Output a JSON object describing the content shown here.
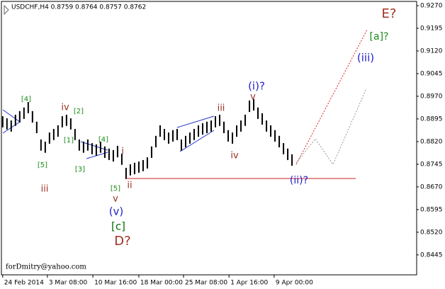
{
  "chart_data": {
    "type": "range_bar",
    "title": "USDCHF,H4 0.8759 0.8764 0.8757 0.8762",
    "color": "#000000",
    "high": [
      0.8904,
      0.8897,
      0.889,
      0.8909,
      0.8921,
      0.8933,
      0.8951,
      0.8921,
      0.8886,
      0.8827,
      0.882,
      0.885,
      0.8862,
      0.8874,
      0.8904,
      0.8909,
      0.8897,
      0.8862,
      0.8827,
      0.882,
      0.8827,
      0.8815,
      0.8811,
      0.882,
      0.8804,
      0.8797,
      0.8792,
      0.8806,
      0.878,
      0.8733,
      0.8745,
      0.875,
      0.8754,
      0.8759,
      0.8768,
      0.8804,
      0.8839,
      0.8874,
      0.8862,
      0.885,
      0.8858,
      0.8862,
      0.8827,
      0.8839,
      0.885,
      0.8862,
      0.8874,
      0.8881,
      0.8886,
      0.889,
      0.8904,
      0.8909,
      0.8886,
      0.8858,
      0.885,
      0.8874,
      0.889,
      0.8909,
      0.8956,
      0.8961,
      0.8933,
      0.8914,
      0.889,
      0.8874,
      0.8858,
      0.8839,
      0.8815,
      0.8797,
      0.8778
    ],
    "low": [
      0.8867,
      0.886,
      0.8853,
      0.8872,
      0.8883,
      0.8895,
      0.8914,
      0.8883,
      0.8848,
      0.879,
      0.8783,
      0.8813,
      0.8825,
      0.8836,
      0.8867,
      0.8872,
      0.886,
      0.8825,
      0.879,
      0.8783,
      0.879,
      0.8778,
      0.8773,
      0.8783,
      0.8766,
      0.8759,
      0.8754,
      0.8768,
      0.8743,
      0.8696,
      0.8708,
      0.8712,
      0.8717,
      0.8722,
      0.8731,
      0.8766,
      0.8801,
      0.8836,
      0.8825,
      0.8813,
      0.882,
      0.8825,
      0.879,
      0.8801,
      0.8813,
      0.8825,
      0.8836,
      0.8843,
      0.8848,
      0.8853,
      0.8867,
      0.8872,
      0.8848,
      0.882,
      0.8813,
      0.8836,
      0.8853,
      0.8872,
      0.8918,
      0.8923,
      0.8895,
      0.8876,
      0.8853,
      0.8836,
      0.882,
      0.8801,
      0.8778,
      0.8759,
      0.874
    ],
    "xlim": [
      -0.3,
      97.3
    ],
    "xticks": [
      {
        "value": 0,
        "label": "24 Feb 2014"
      },
      {
        "value": 10.5,
        "label": "3 Mar 08:00"
      },
      {
        "value": 21.2,
        "label": "10 Mar 16:00"
      },
      {
        "value": 32,
        "label": "18 Mar 00:00"
      },
      {
        "value": 42.5,
        "label": "25 Mar 08:00"
      },
      {
        "value": 53.2,
        "label": "1 Apr 16:00"
      },
      {
        "value": 63.8,
        "label": "9 Apr 00:00"
      }
    ],
    "ylim": [
      0.8379,
      0.9284
    ],
    "yticks": [
      {
        "value": 0.927,
        "label": "0.9270"
      },
      {
        "value": 0.9195,
        "label": "0.9195"
      },
      {
        "value": 0.912,
        "label": "0.9120"
      },
      {
        "value": 0.9045,
        "label": "0.9045"
      },
      {
        "value": 0.897,
        "label": "0.8970"
      },
      {
        "value": 0.8895,
        "label": "0.8895"
      },
      {
        "value": 0.882,
        "label": "0.8820"
      },
      {
        "value": 0.8745,
        "label": "0.8745"
      },
      {
        "value": 0.867,
        "label": "0.8670"
      },
      {
        "value": 0.8595,
        "label": "0.8595"
      },
      {
        "value": 0.852,
        "label": "0.8520"
      },
      {
        "value": 0.8445,
        "label": "0.8445"
      }
    ],
    "horizontal_line": {
      "value": 0.8698,
      "color": "#cc2222"
    },
    "annotations": [
      {
        "text": "[4]",
        "color": "#1a8a1a"
      },
      {
        "text": "iv",
        "color": "#993322"
      },
      {
        "text": "[2]",
        "color": "#1a8a1a"
      },
      {
        "text": "[1]",
        "color": "#1a8a1a"
      },
      {
        "text": "[4]",
        "color": "#1a8a1a"
      },
      {
        "text": "[3]",
        "color": "#1a8a1a"
      },
      {
        "text": "[5]",
        "color": "#1a8a1a"
      },
      {
        "text": "iii",
        "color": "#993322"
      },
      {
        "text": "i",
        "color": "#993322"
      },
      {
        "text": "ii",
        "color": "#993322"
      },
      {
        "text": "[5]",
        "color": "#1a8a1a"
      },
      {
        "text": "v",
        "color": "#993322"
      },
      {
        "text": "(v)",
        "color": "#2222cc"
      },
      {
        "text": "[c]",
        "color": "#0a6a0a"
      },
      {
        "text": "D?",
        "color": "#a03020"
      },
      {
        "text": "iii",
        "color": "#993322"
      },
      {
        "text": "iv",
        "color": "#993322"
      },
      {
        "text": "(i)?",
        "color": "#2222cc"
      },
      {
        "text": "v",
        "color": "#993322"
      },
      {
        "text": "(ii)?",
        "color": "#2222cc"
      },
      {
        "text": "[a]?",
        "color": "#1a8a1a"
      },
      {
        "text": "(iii)",
        "color": "#2222cc"
      },
      {
        "text": "E?",
        "color": "#a03020"
      }
    ],
    "footer": "forDmitry@yahoo.com"
  }
}
